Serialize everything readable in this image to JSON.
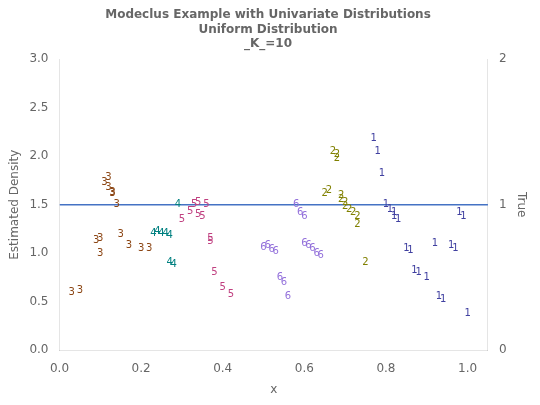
{
  "chart_data": {
    "type": "scatter",
    "title": [
      "Modeclus Example with Univariate Distributions",
      "Uniform Distribution",
      "_K_=10"
    ],
    "xlabel": "x",
    "ylabel": "Estimated Density",
    "y2label": "True",
    "xlim": [
      0.0,
      1.05
    ],
    "ylim": [
      0.0,
      3.0
    ],
    "y2lim": [
      0,
      2
    ],
    "xticks": [
      {
        "value": 0.0,
        "label": "0.0"
      },
      {
        "value": 0.2,
        "label": "0.2"
      },
      {
        "value": 0.4,
        "label": "0.4"
      },
      {
        "value": 0.6,
        "label": "0.6"
      },
      {
        "value": 0.8,
        "label": "0.8"
      },
      {
        "value": 1.0,
        "label": "1.0"
      }
    ],
    "yticks": [
      {
        "value": 0.0,
        "label": "0.0"
      },
      {
        "value": 0.5,
        "label": "0.5"
      },
      {
        "value": 1.0,
        "label": "1.0"
      },
      {
        "value": 1.5,
        "label": "1.5"
      },
      {
        "value": 2.0,
        "label": "2.0"
      },
      {
        "value": 2.5,
        "label": "2.5"
      },
      {
        "value": 3.0,
        "label": "3.0"
      }
    ],
    "y2ticks": [
      0,
      1,
      2
    ],
    "grid": false,
    "hline": {
      "y": 1.5,
      "color": "#4472C4"
    },
    "series": [
      {
        "name": "3",
        "color": "#8B4513",
        "marker": "text",
        "x": [
          0.03,
          0.05,
          0.09,
          0.1,
          0.1,
          0.11,
          0.12,
          0.12,
          0.13,
          0.13,
          0.14,
          0.15,
          0.17,
          0.2,
          0.22
        ],
        "values": [
          0.6,
          0.62,
          1.13,
          1.15,
          1.0,
          1.73,
          1.78,
          1.68,
          1.63,
          1.62,
          1.5,
          1.19,
          1.08,
          1.05,
          1.05
        ]
      },
      {
        "name": "4",
        "color": "#008080",
        "marker": "text",
        "x": [
          0.23,
          0.24,
          0.25,
          0.26,
          0.27,
          0.27,
          0.28,
          0.29
        ],
        "values": [
          1.2,
          1.22,
          1.2,
          1.2,
          1.18,
          0.9,
          0.88,
          1.5
        ]
      },
      {
        "name": "5",
        "color": "#C04080",
        "marker": "text",
        "x": [
          0.3,
          0.32,
          0.33,
          0.34,
          0.34,
          0.35,
          0.36,
          0.37,
          0.37,
          0.38,
          0.4,
          0.42
        ],
        "values": [
          1.35,
          1.43,
          1.5,
          1.52,
          1.4,
          1.38,
          1.5,
          1.15,
          1.12,
          0.8,
          0.65,
          0.58
        ]
      },
      {
        "name": "6",
        "color": "#9370DB",
        "marker": "text",
        "x": [
          0.5,
          0.51,
          0.52,
          0.53,
          0.54,
          0.55,
          0.56,
          0.58,
          0.59,
          0.6,
          0.6,
          0.61,
          0.62,
          0.63,
          0.64
        ],
        "values": [
          1.06,
          1.08,
          1.04,
          1.02,
          0.75,
          0.7,
          0.55,
          1.5,
          1.42,
          1.38,
          1.1,
          1.08,
          1.05,
          1.0,
          0.98
        ]
      },
      {
        "name": "2",
        "color": "#808000",
        "marker": "text",
        "x": [
          0.65,
          0.66,
          0.67,
          0.68,
          0.68,
          0.69,
          0.69,
          0.7,
          0.7,
          0.71,
          0.72,
          0.73,
          0.73,
          0.75
        ],
        "values": [
          1.62,
          1.65,
          2.05,
          2.02,
          1.98,
          1.6,
          1.55,
          1.52,
          1.48,
          1.45,
          1.42,
          1.38,
          1.3,
          0.9
        ]
      },
      {
        "name": "1",
        "color": "#4040A0",
        "marker": "text",
        "x": [
          0.77,
          0.78,
          0.79,
          0.8,
          0.81,
          0.82,
          0.82,
          0.83,
          0.85,
          0.86,
          0.87,
          0.88,
          0.9,
          0.92,
          0.93,
          0.94,
          0.96,
          0.97,
          0.98,
          0.99,
          1.0
        ],
        "values": [
          2.18,
          2.05,
          1.82,
          1.5,
          1.45,
          1.42,
          1.38,
          1.35,
          1.05,
          1.03,
          0.82,
          0.8,
          0.75,
          1.1,
          0.55,
          0.52,
          1.08,
          1.05,
          1.42,
          1.38,
          0.38
        ]
      }
    ]
  }
}
